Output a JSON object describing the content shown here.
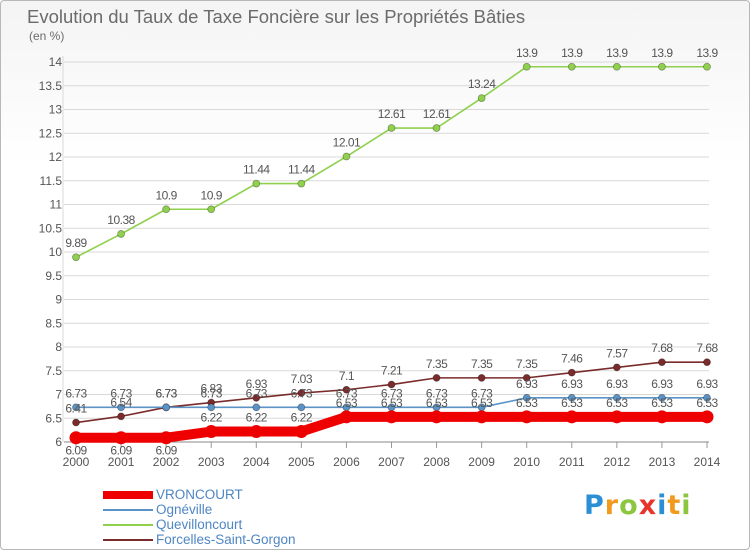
{
  "chart_data": {
    "type": "line",
    "title": "Evolution du Taux de Taxe Foncière sur les Propriétés Bâties",
    "ylabel": "(en %)",
    "xlabel": "",
    "ylim": [
      6,
      14
    ],
    "y_ticks": [
      "6",
      "6.5",
      "7",
      "7.5",
      "8",
      "8.5",
      "9",
      "9.5",
      "10",
      "10.5",
      "11",
      "11.5",
      "12",
      "12.5",
      "13",
      "13.5",
      "14"
    ],
    "x": [
      "2000",
      "2001",
      "2002",
      "2003",
      "2004",
      "2005",
      "2006",
      "2007",
      "2008",
      "2009",
      "2010",
      "2011",
      "2012",
      "2013",
      "2014"
    ],
    "series": [
      {
        "name": "VRONCOURT",
        "color": "#ee0000",
        "values": [
          6.09,
          6.09,
          6.09,
          6.22,
          6.22,
          6.22,
          6.53,
          6.53,
          6.53,
          6.53,
          6.53,
          6.53,
          6.53,
          6.53,
          6.53
        ],
        "labels": [
          "6.09",
          "6.09",
          "6.09",
          "6.22",
          "6.22",
          "6.22",
          "6.53",
          "6.53",
          "6.53",
          "6.53",
          "6.53",
          "6.53",
          "6.53",
          "6.53",
          "6.53"
        ]
      },
      {
        "name": "Ognéville",
        "color": "#5b93c6",
        "values": [
          6.73,
          6.73,
          6.73,
          6.73,
          6.73,
          6.73,
          6.73,
          6.73,
          6.73,
          6.73,
          6.93,
          6.93,
          6.93,
          6.93,
          6.93
        ],
        "labels": [
          "6.73",
          "6.73",
          "6.73",
          "6.73",
          "6.73",
          "6.73",
          "6.73",
          "6.73",
          "6.73",
          "6.73",
          "6.93",
          "6.93",
          "6.93",
          "6.93",
          "6.93"
        ]
      },
      {
        "name": "Quevilloncourt",
        "color": "#8fd04c",
        "values": [
          9.89,
          10.38,
          10.9,
          10.9,
          11.44,
          11.44,
          12.01,
          12.61,
          12.61,
          13.24,
          13.9,
          13.9,
          13.9,
          13.9,
          13.9
        ],
        "labels": [
          "9.89",
          "10.38",
          "10.9",
          "10.9",
          "11.44",
          "11.44",
          "12.01",
          "12.61",
          "12.61",
          "13.24",
          "13.9",
          "13.9",
          "13.9",
          "13.9",
          "13.9"
        ]
      },
      {
        "name": "Forcelles-Saint-Gorgon",
        "color": "#7a2b2b",
        "values": [
          6.41,
          6.54,
          6.73,
          6.83,
          6.93,
          7.03,
          7.1,
          7.21,
          7.35,
          7.35,
          7.35,
          7.46,
          7.57,
          7.68,
          7.68
        ],
        "labels": [
          "6.41",
          "6.54",
          "6.73",
          "6.83",
          "6.93",
          "7.03",
          "7.1",
          "7.21",
          "7.35",
          "7.35",
          "7.35",
          "7.46",
          "7.57",
          "7.68",
          "7.68"
        ]
      }
    ]
  },
  "legend": {
    "items": [
      "VRONCOURT",
      "Ognéville",
      "Quevilloncourt",
      "Forcelles-Saint-Gorgon"
    ]
  },
  "brand": {
    "letters": [
      "P",
      "r",
      "o",
      "x",
      "i",
      "t",
      "i"
    ],
    "colors": [
      "#2b8fd6",
      "#f09b1d",
      "#8cc63f",
      "#e8352b",
      "#2b8fd6",
      "#f09b1d",
      "#8cc63f"
    ]
  }
}
